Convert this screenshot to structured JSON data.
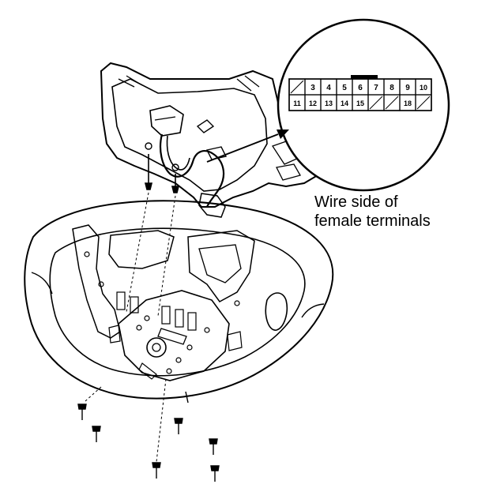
{
  "caption": {
    "line1": "Wire side of",
    "line2": "female terminals"
  },
  "connector": {
    "top_row": [
      "",
      "3",
      "4",
      "5",
      "6",
      "7",
      "8",
      "9",
      "10"
    ],
    "bottom_row": [
      "11",
      "12",
      "13",
      "14",
      "15",
      "",
      "",
      "18",
      ""
    ]
  }
}
